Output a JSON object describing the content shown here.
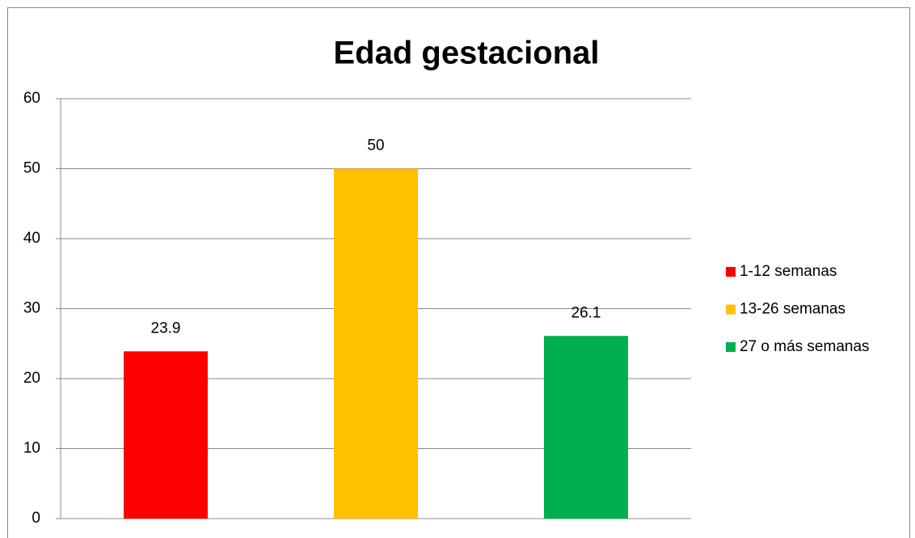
{
  "chart_data": {
    "type": "bar",
    "title": "Edad gestacional",
    "series": [
      {
        "name": "1-12 semanas",
        "color": "#ff0000",
        "values": [
          23.9
        ]
      },
      {
        "name": "13-26 semanas",
        "color": "#ffc000",
        "values": [
          50
        ]
      },
      {
        "name": "27 o más semanas",
        "color": "#00b050",
        "values": [
          26.1
        ]
      }
    ],
    "ylim": [
      0,
      60
    ],
    "yticks": [
      0,
      10,
      20,
      30,
      40,
      50,
      60
    ],
    "grid": true,
    "legend": "right"
  }
}
